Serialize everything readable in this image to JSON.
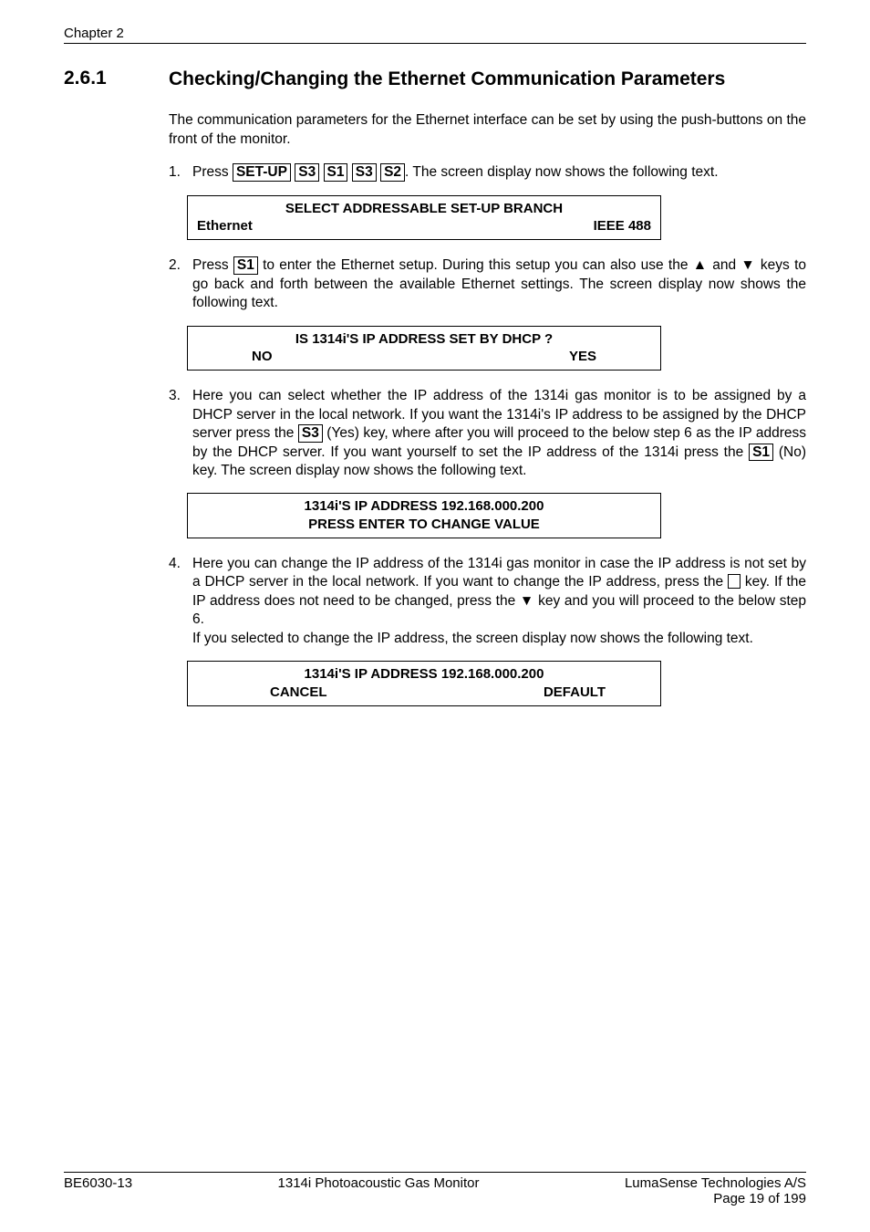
{
  "header": {
    "chapter": "Chapter 2"
  },
  "section": {
    "number": "2.6.1",
    "title": "Checking/Changing the Ethernet Communication Parameters"
  },
  "intro": "The communication parameters for the Ethernet interface can be set by using the push-buttons on the front of the monitor.",
  "step1": {
    "marker": "1.",
    "pre": "Press ",
    "k1": "SET-UP",
    "k2": "S3",
    "k3": "S1",
    "k4": "S3",
    "k5": "S2",
    "post": ". The screen display now shows the following text."
  },
  "box1": {
    "line1": "SELECT ADDRESSABLE SET-UP BRANCH",
    "left": "Ethernet",
    "right": "IEEE 488"
  },
  "step2": {
    "marker": "2.",
    "t1": "Press ",
    "k1": "S1",
    "t2": " to enter the Ethernet setup. During this setup you can also use the ▲ and ▼ keys to go back and forth between the available Ethernet settings. The screen display now shows the following text."
  },
  "box2": {
    "line1": "IS 1314i'S IP ADDRESS SET BY DHCP ?",
    "left": "NO",
    "right": "YES"
  },
  "step3": {
    "marker": "3.",
    "t1": "Here you can select whether the IP address of the 1314i gas monitor is to be assigned by a DHCP server in the local network. If you want the  1314i's IP address to be assigned by the DHCP server press the ",
    "k1": "S3",
    "t2": " (Yes) key, where after you will proceed to the below step 6 as the IP address by the DHCP server. If you want yourself to set the IP address of the 1314i press the ",
    "k2": "S1",
    "t3": " (No) key. The screen display now shows the following text."
  },
  "box3": {
    "line1": "1314i'S IP ADDRESS 192.168.000.200",
    "line2": "PRESS ENTER TO CHANGE VALUE"
  },
  "step4": {
    "marker": "4.",
    "t1": "Here you can change the IP address of the 1314i gas monitor in case the IP address is not set by a DHCP server in the local network. If you want to change the IP address, press the ",
    "t2": " key. If the IP address does not need to be changed, press the ▼ key and you will proceed to the below step 6.",
    "t3": "If you selected to change the IP address, the screen display now shows the following text."
  },
  "box4": {
    "line1": "1314i'S IP ADDRESS 192.168.000.200",
    "left": "CANCEL",
    "right": "DEFAULT"
  },
  "footer": {
    "left": "BE6030-13",
    "center": "1314i Photoacoustic Gas Monitor",
    "right1": "LumaSense Technologies A/S",
    "right2": "Page 19 of 199"
  }
}
